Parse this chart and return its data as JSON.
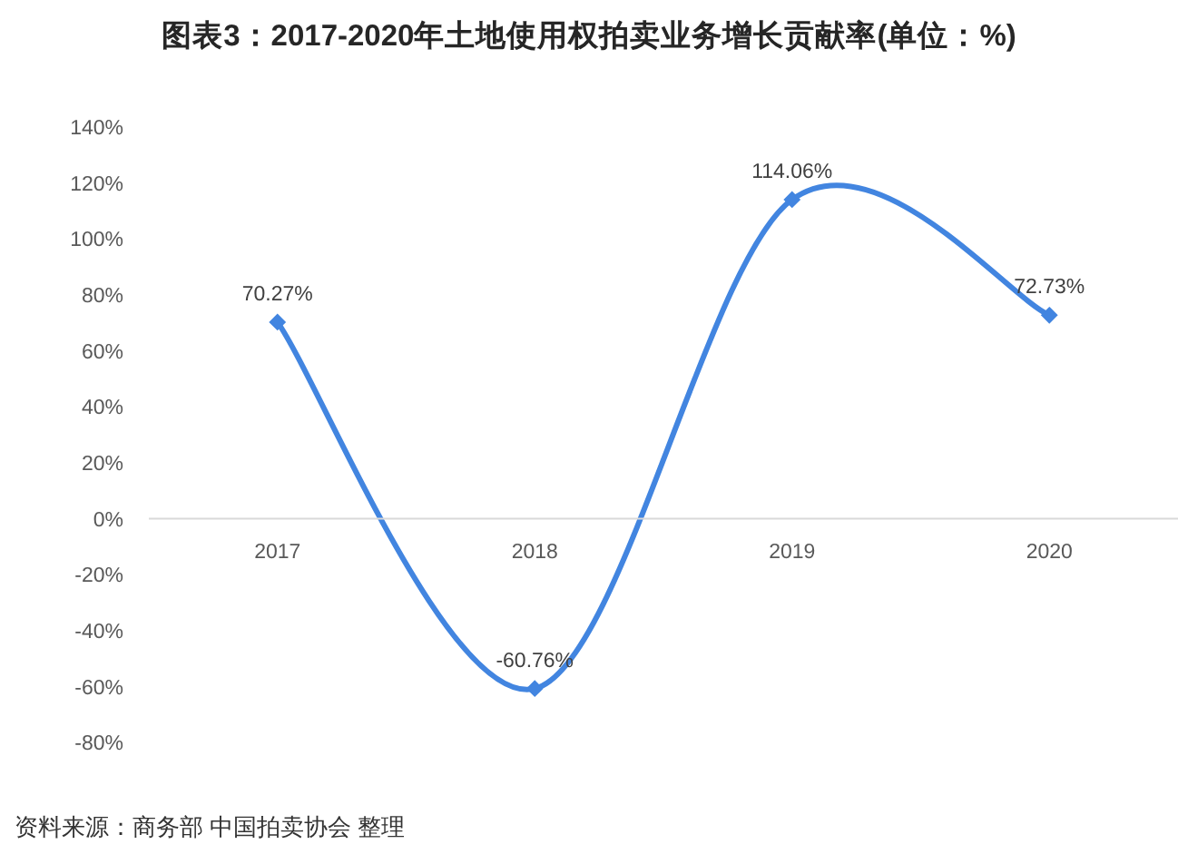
{
  "chart_data": {
    "type": "line",
    "title": "图表3：2017-2020年土地使用权拍卖业务增长贡献率(单位：%)",
    "annotations": [
      "资料来源：商务部 中国拍卖协会 整理"
    ],
    "categories": [
      "2017",
      "2018",
      "2019",
      "2020"
    ],
    "values": [
      70.27,
      -60.76,
      114.06,
      72.73
    ],
    "value_labels": [
      "70.27%",
      "-60.76%",
      "114.06%",
      "72.73%"
    ],
    "color": "#4285e0",
    "marker": "diamond",
    "ylim": [
      -80,
      140
    ],
    "yticks": [
      {
        "value": -80,
        "label": "-80%"
      },
      {
        "value": -60,
        "label": "-60%"
      },
      {
        "value": -40,
        "label": "-40%"
      },
      {
        "value": -20,
        "label": "-20%"
      },
      {
        "value": 0,
        "label": "0%"
      },
      {
        "value": 20,
        "label": "20%"
      },
      {
        "value": 40,
        "label": "40%"
      },
      {
        "value": 60,
        "label": "60%"
      },
      {
        "value": 80,
        "label": "80%"
      },
      {
        "value": 100,
        "label": "100%"
      },
      {
        "value": 120,
        "label": "120%"
      },
      {
        "value": 140,
        "label": "140%"
      }
    ]
  }
}
